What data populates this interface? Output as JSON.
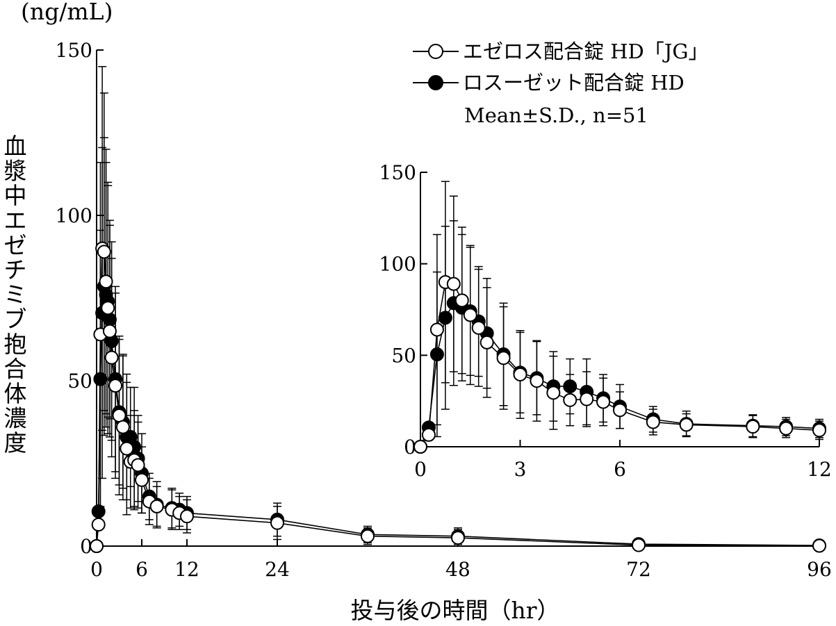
{
  "chart_data": [
    {
      "type": "line",
      "panel": "main",
      "unit_label": "(ng/mL)",
      "ylabel": "血漿中エゼチミブ抱合体濃度",
      "xlabel": "投与後の時間（hr）",
      "xlim": [
        0,
        96
      ],
      "ylim": [
        0,
        150
      ],
      "xticks": [
        0,
        6,
        12,
        24,
        48,
        72,
        96
      ],
      "yticks": [
        0,
        50,
        100,
        150
      ],
      "series": [
        {
          "name": "エゼロス配合錠 HD「JG」",
          "marker": "open-circle",
          "x": [
            0,
            0.25,
            0.5,
            0.75,
            1,
            1.25,
            1.5,
            1.75,
            2,
            2.5,
            3,
            3.5,
            4,
            4.5,
            5,
            5.5,
            6,
            7,
            8,
            10,
            11,
            12,
            24,
            36,
            48,
            72,
            96
          ],
          "y": [
            0,
            6.5,
            64,
            90,
            89,
            80,
            72,
            65,
            57,
            48.5,
            39.5,
            36,
            29.5,
            25.5,
            26,
            24.5,
            20,
            13.5,
            12,
            11,
            10,
            9,
            7,
            3,
            2.5,
            0.3,
            0.1
          ],
          "sd": [
            0,
            0,
            52,
            55,
            48,
            40,
            38,
            32,
            30,
            28,
            24,
            22,
            20,
            14,
            15,
            13,
            10,
            7,
            6,
            6,
            5,
            5,
            5,
            2.5,
            2.5,
            0.8,
            0.3
          ]
        },
        {
          "name": "ロスーゼット配合錠 HD",
          "marker": "filled-circle",
          "x": [
            0,
            0.25,
            0.5,
            0.75,
            1,
            1.25,
            1.5,
            1.75,
            2,
            2.5,
            3,
            3.5,
            4,
            4.5,
            5,
            5.5,
            6,
            7,
            8,
            10,
            11,
            12,
            24,
            36,
            48,
            72,
            96
          ],
          "y": [
            0,
            10.5,
            50.5,
            70.5,
            78.5,
            76,
            74,
            68.5,
            62,
            50.5,
            40.5,
            37.5,
            33,
            33,
            30,
            26.5,
            22,
            15,
            12.5,
            11.5,
            11,
            10,
            8,
            3.5,
            3,
            0.6,
            0.2
          ],
          "sd": [
            0,
            0,
            45,
            50,
            45,
            40,
            35,
            30,
            30,
            28,
            22,
            20,
            19,
            15,
            18,
            13,
            12,
            7,
            7,
            6,
            5,
            5,
            5,
            2.5,
            2.5,
            0.8,
            0.3
          ]
        }
      ]
    },
    {
      "type": "line",
      "panel": "inset",
      "xlim": [
        0,
        12
      ],
      "ylim": [
        0,
        150
      ],
      "xticks": [
        0,
        3,
        6,
        12
      ],
      "yticks": [
        0,
        50,
        100,
        150
      ],
      "series_ref": "same data as main panel, x from 0 to 12 hr"
    }
  ],
  "legend": {
    "items": [
      {
        "label": "エゼロス配合錠 HD「JG」",
        "marker": "open-circle"
      },
      {
        "label": "ロスーゼット配合錠 HD",
        "marker": "filled-circle"
      }
    ],
    "note": "Mean±S.D.,  n=51"
  }
}
